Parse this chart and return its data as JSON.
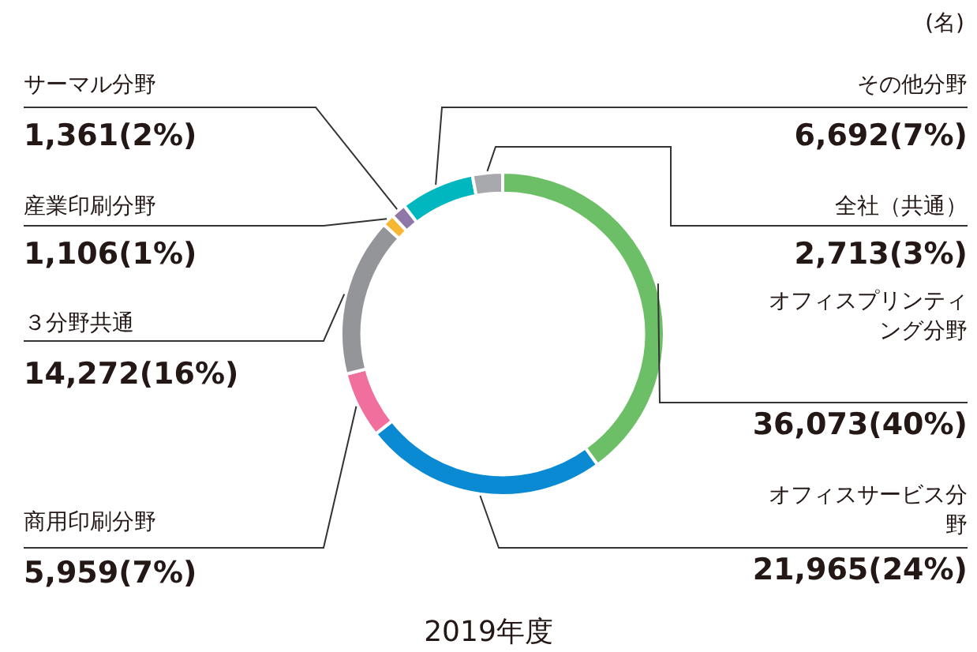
{
  "chart_data": {
    "type": "donut",
    "title": "2019年度",
    "annotations": [
      "(名)"
    ],
    "categories": [
      "オフィスプリンティング分野",
      "オフィスサービス分野",
      "商用印刷分野",
      "３分野共通",
      "産業印刷分野",
      "サーマル分野",
      "その他分野",
      "全社（共通）"
    ],
    "values": [
      36073,
      21965,
      5959,
      14272,
      1106,
      1361,
      6692,
      2713
    ],
    "value_labels": [
      "36,073(40%)",
      "21,965(24%)",
      "5,959(7%)",
      "14,272(16%)",
      "1,106(1%)",
      "1,361(2%)",
      "6,692(7%)",
      "2,713(3%)"
    ],
    "colors": [
      "#6cbf66",
      "#0a8ad2",
      "#f06f9c",
      "#939598",
      "#f7b733",
      "#8f78a8",
      "#00b7bf",
      "#a7a9ac"
    ],
    "legend": false
  }
}
